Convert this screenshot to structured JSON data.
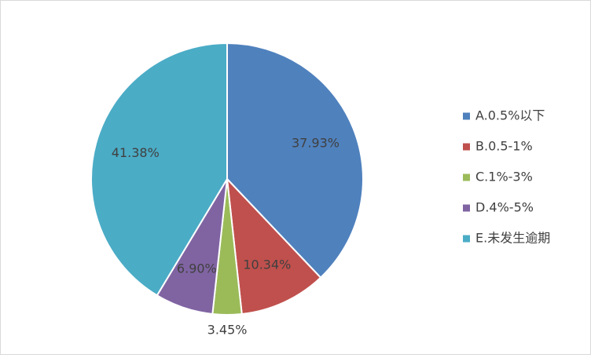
{
  "chart_data": {
    "type": "pie",
    "categories": [
      "A.0.5%以下",
      "B.0.5-1%",
      "C.1%-3%",
      "D.4%-5%",
      "E.未发生逾期"
    ],
    "values": [
      37.93,
      10.34,
      3.45,
      6.9,
      41.38
    ],
    "value_labels": [
      "37.93%",
      "10.34%",
      "3.45%",
      "6.90%",
      "41.38%"
    ],
    "colors": [
      "#4f81bd",
      "#c0504d",
      "#9bbb59",
      "#8064a2",
      "#4bacc6"
    ],
    "legend": "right"
  }
}
